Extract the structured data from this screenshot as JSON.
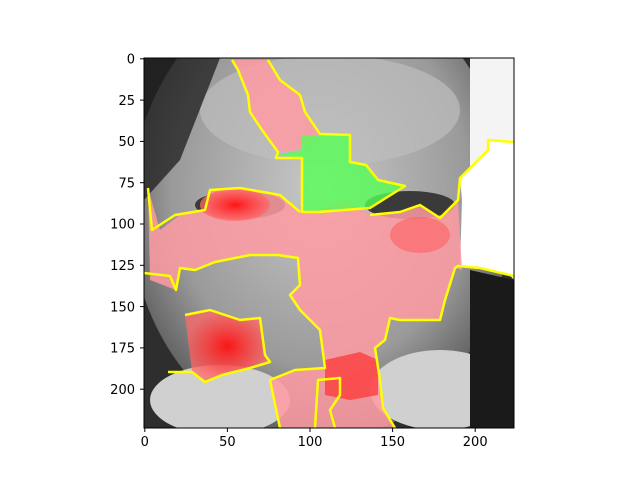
{
  "figure": {
    "image_description": "grayscale face photo with segmentation overlay (red, pink, green regions outlined in yellow)",
    "overlay_colors": {
      "outline": "#ffff00",
      "strong_red": "#ff2020",
      "pink": "#ff9aa2",
      "green": "#55ff55",
      "white_patch": "#ffffff"
    },
    "x_axis": {
      "min": 0,
      "max": 224,
      "ticks": [
        0,
        50,
        100,
        150,
        200
      ]
    },
    "y_axis": {
      "min": 0,
      "max": 224,
      "ticks": [
        0,
        25,
        50,
        75,
        100,
        125,
        150,
        175,
        200
      ],
      "inverted": true
    }
  }
}
